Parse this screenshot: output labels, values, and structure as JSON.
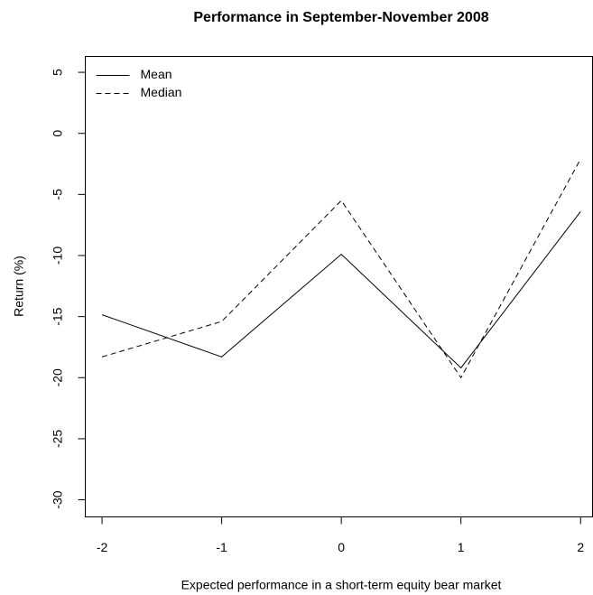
{
  "chart_data": {
    "type": "line",
    "title": "Performance in September-November 2008",
    "x_label": "Expected performance in a short-term equity bear market",
    "y_label": "Return (%)",
    "x": [
      -2,
      -1,
      0,
      1,
      2
    ],
    "series": [
      {
        "name": "Mean",
        "color": "#000000",
        "dash": "solid",
        "values": [
          -14.85,
          -18.3,
          -9.9,
          -19.2,
          -6.4
        ]
      },
      {
        "name": "Median",
        "color": "#000000",
        "dash": "dashed",
        "values": [
          -18.3,
          -15.4,
          -5.5,
          -20.0,
          -2.1
        ]
      }
    ],
    "xlim": [
      -2.14,
      2.1
    ],
    "xticks": [
      -2,
      -1,
      0,
      1,
      2
    ],
    "ylim": [
      -31.4,
      6.3
    ],
    "yticks": [
      5,
      0,
      -5,
      -10,
      -15,
      -20,
      -25,
      -30
    ],
    "legend": "top-left",
    "grid": false
  }
}
